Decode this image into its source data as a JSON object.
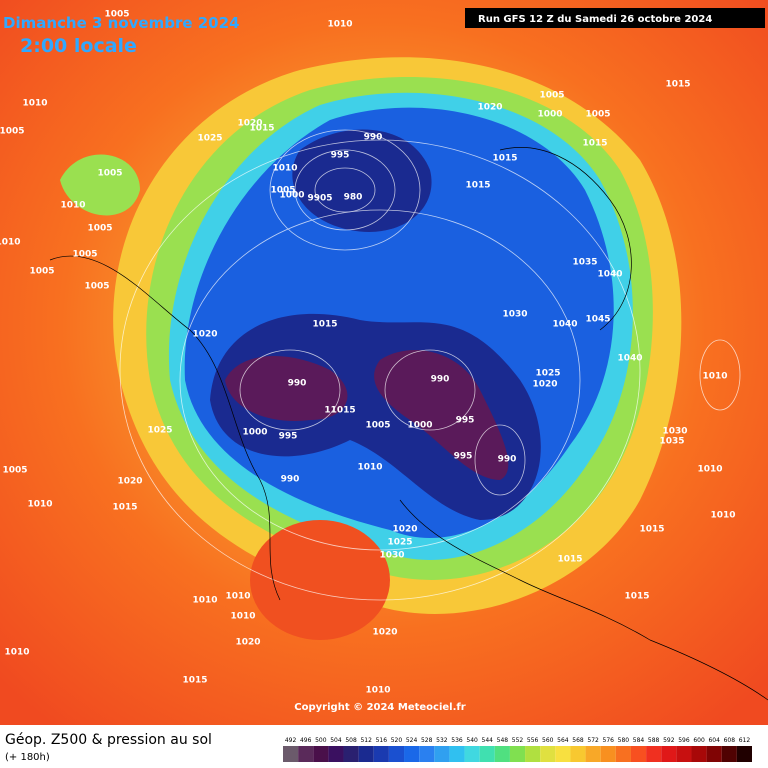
{
  "header": {
    "title": "Dimanche 3 novembre 2024",
    "time": "2:00 locale",
    "run": "Run GFS 12 Z du Samedi 26 octobre 2024"
  },
  "map": {
    "pressure_labels": [
      "1010",
      "1005",
      "1010",
      "1005",
      "1025",
      "1020",
      "1015",
      "1005",
      "1010",
      "1010",
      "1005",
      "1005",
      "1005",
      "1005",
      "995",
      "990",
      "1010",
      "1005",
      "1000",
      "9905",
      "980",
      "1020",
      "1005",
      "1000",
      "1005",
      "1015",
      "1015",
      "1015",
      "1015",
      "1035",
      "1040",
      "1030",
      "1040",
      "1045",
      "1020",
      "1015",
      "990",
      "1040",
      "1010",
      "1025",
      "1020",
      "990",
      "11015",
      "1000",
      "995",
      "1005",
      "1000",
      "995",
      "1025",
      "995",
      "990",
      "1010",
      "990",
      "1030",
      "1035",
      "1010",
      "1005",
      "1020",
      "1010",
      "1015",
      "1010",
      "1020",
      "1025",
      "1030",
      "1015",
      "1015",
      "1015",
      "1010",
      "1010",
      "1010",
      "1020",
      "1020",
      "1010",
      "1015",
      "1010"
    ],
    "copyright": "Copyright © 2024 Meteociel.fr"
  },
  "footer": {
    "title": "Géop. Z500 & pression au sol",
    "subtitle": "(+ 180h)",
    "scale": [
      492,
      496,
      500,
      504,
      508,
      512,
      516,
      520,
      524,
      528,
      532,
      536,
      540,
      544,
      548,
      552,
      556,
      560,
      564,
      568,
      572,
      576,
      580,
      584,
      588,
      592,
      596,
      600,
      604,
      608,
      612
    ],
    "scale_colors": [
      "#6b5a6b",
      "#5a2a5a",
      "#4a104a",
      "#3a1060",
      "#2a2070",
      "#1a2a90",
      "#1a3ab0",
      "#1a50d0",
      "#1a68e8",
      "#2a80f0",
      "#30a0f0",
      "#30c0f0",
      "#40d8e0",
      "#40e0b0",
      "#50e080",
      "#80e050",
      "#b0e040",
      "#e0e040",
      "#f8e040",
      "#f8c830",
      "#f8a828",
      "#f89020",
      "#f87020",
      "#f85020",
      "#f03020",
      "#e01818",
      "#c81010",
      "#a80808",
      "#800404",
      "#500202",
      "#200000"
    ]
  }
}
